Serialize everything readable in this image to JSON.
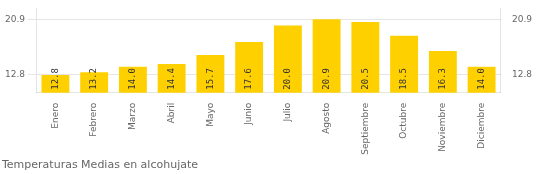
{
  "chart_data": {
    "type": "bar",
    "title": "Temperaturas Medias en alcohujate",
    "categories": [
      "Enero",
      "Febrero",
      "Marzo",
      "Abril",
      "Mayo",
      "Junio",
      "Julio",
      "Agosto",
      "Septiembre",
      "Octubre",
      "Noviembre",
      "Diciembre"
    ],
    "values": [
      12.8,
      13.2,
      14.0,
      14.4,
      15.7,
      17.6,
      20.0,
      20.9,
      20.5,
      18.5,
      16.3,
      14.0
    ],
    "value_labels": [
      "12.8",
      "13.2",
      "14.0",
      "14.4",
      "15.7",
      "17.6",
      "20.0",
      "20.9",
      "20.5",
      "18.5",
      "16.3",
      "14.0"
    ],
    "color": "#FFD000",
    "ylim": [
      10.2,
      22.5
    ],
    "yticks": [
      12.8,
      20.9
    ],
    "y2lim": [
      10.2,
      22.5
    ],
    "y2ticks": [
      12.8,
      20.9
    ],
    "grid": true,
    "data_labels": true
  }
}
